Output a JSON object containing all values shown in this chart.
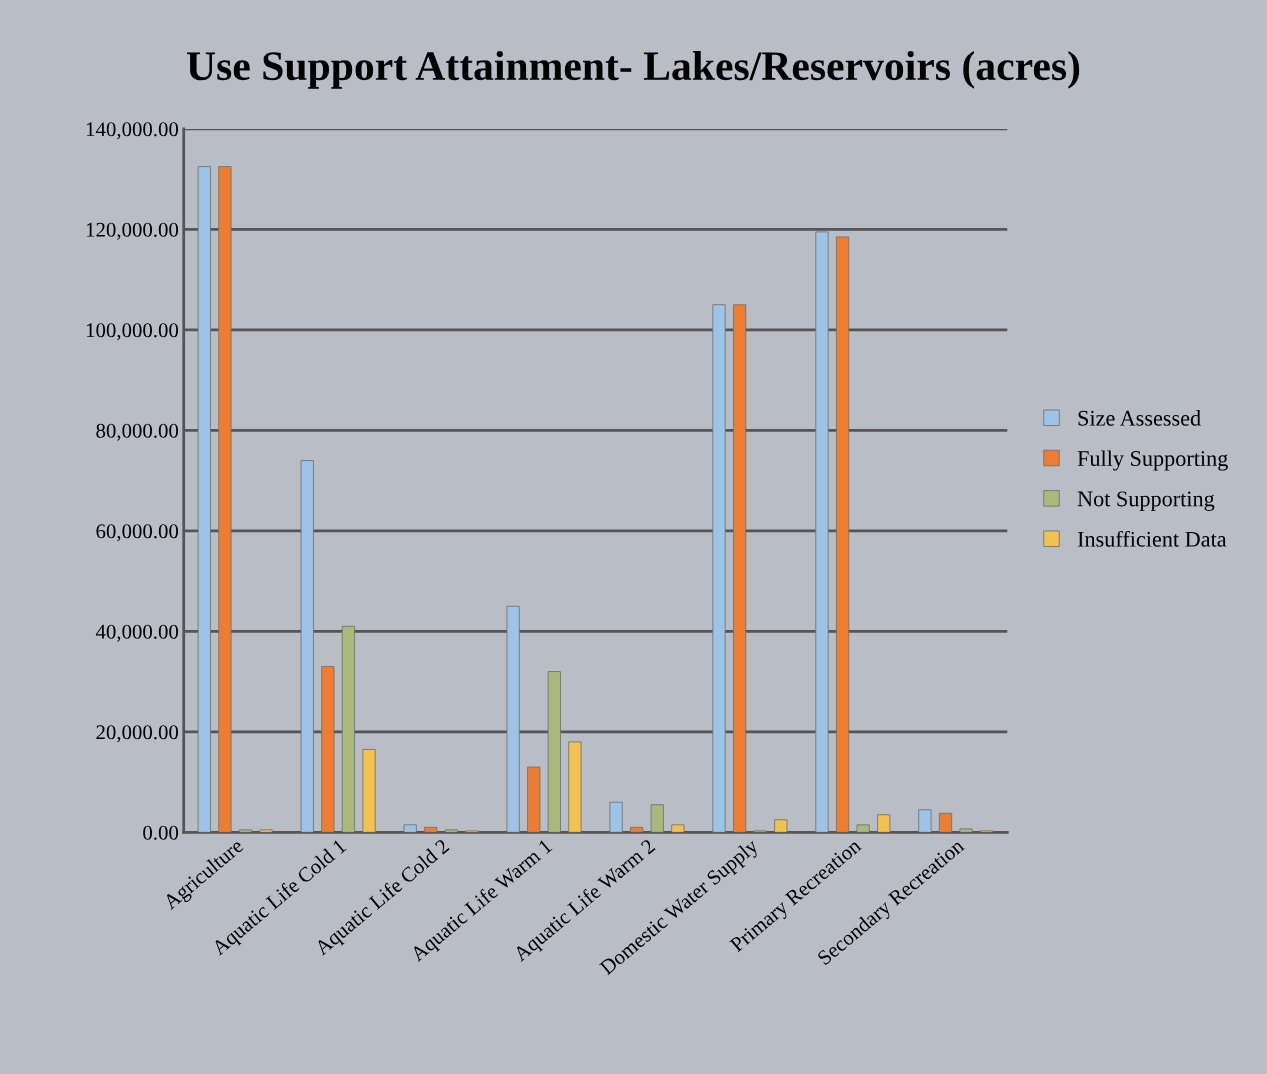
{
  "chart_data": {
    "type": "bar",
    "title": "Use Support Attainment- Lakes/Reservoirs (acres)",
    "categories": [
      "Agriculture",
      "Aquatic Life Cold 1",
      "Aquatic Life Cold 2",
      "Aquatic Life Warm 1",
      "Aquatic Life Warm 2",
      "Domestic Water Supply",
      "Primary Recreation",
      "Secondary Recreation"
    ],
    "series": [
      {
        "name": "Size Assessed",
        "color": "#9dc3e6",
        "values": [
          132500,
          74000,
          1500,
          45000,
          6000,
          105000,
          119500,
          4500
        ]
      },
      {
        "name": "Fully Supporting",
        "color": "#ed7d31",
        "values": [
          132500,
          33000,
          1000,
          13000,
          1000,
          105000,
          118500,
          3800
        ]
      },
      {
        "name": "Not Supporting",
        "color": "#a9b97c",
        "values": [
          500,
          41000,
          500,
          32000,
          5500,
          300,
          1500,
          700
        ]
      },
      {
        "name": "Insufficient Data",
        "color": "#f2c14e",
        "values": [
          500,
          16500,
          300,
          18000,
          1500,
          2500,
          3500,
          300
        ]
      }
    ],
    "ylim": [
      0,
      140000
    ],
    "yticks": [
      {
        "value": 0,
        "label": "0.00"
      },
      {
        "value": 20000,
        "label": "20,000.00"
      },
      {
        "value": 40000,
        "label": "40,000.00"
      },
      {
        "value": 60000,
        "label": "60,000.00"
      },
      {
        "value": 80000,
        "label": "80,000.00"
      },
      {
        "value": 100000,
        "label": "100,000.00"
      },
      {
        "value": 120000,
        "label": "120,000.00"
      },
      {
        "value": 140000,
        "label": "140,000.00"
      }
    ],
    "grid": "y",
    "legend": "right"
  }
}
